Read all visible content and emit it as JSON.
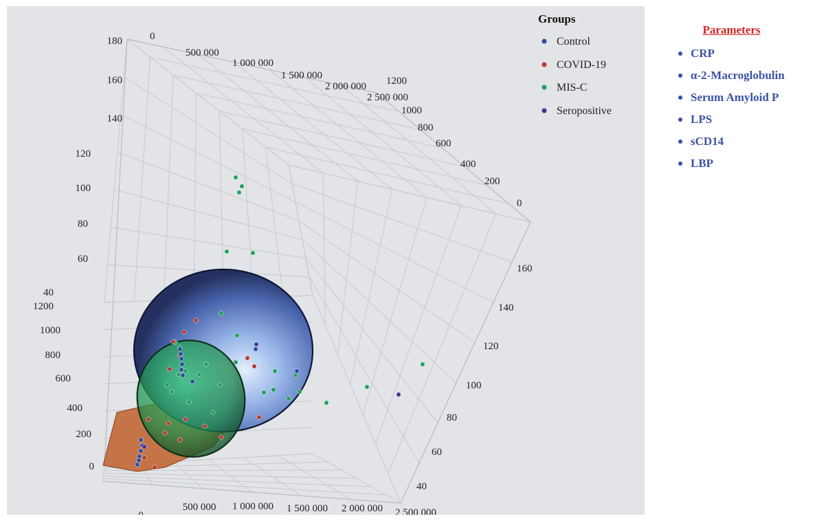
{
  "parameters": {
    "title": "Parameters",
    "items": [
      "CRP",
      "α-2-Macroglobulin",
      "Serum Amyloid P",
      "LPS",
      "sCD14",
      "LBP"
    ]
  },
  "chart_data": {
    "type": "scatter",
    "subtype": "3d-scatter-with-ellipsoids",
    "legend": {
      "title": "Groups",
      "placement": "top-right",
      "entries": [
        {
          "name": "Control",
          "color": "#2b4aa6"
        },
        {
          "name": "COVID-19",
          "color": "#b83a32"
        },
        {
          "name": "MIS-C",
          "color": "#1fa05a"
        },
        {
          "name": "Seropositive",
          "color": "#4b2d8f"
        }
      ]
    },
    "axes": {
      "vertical_left_upper": {
        "ticks": [
          "180",
          "160",
          "140",
          "120",
          "100",
          "80",
          "60",
          "40"
        ],
        "range": [
          40,
          180
        ]
      },
      "vertical_left_lower": {
        "ticks": [
          "1200",
          "1000",
          "800",
          "600",
          "400",
          "200",
          "0"
        ],
        "range": [
          0,
          1200
        ]
      },
      "top_back": {
        "ticks": [
          "0",
          "500 000",
          "1 000 000",
          "1 500 000",
          "2 000 000",
          "2 500 000"
        ],
        "range": [
          0,
          2500000
        ]
      },
      "right_back": {
        "ticks": [
          "1200",
          "1000",
          "800",
          "600",
          "400",
          "200",
          "0"
        ],
        "range": [
          0,
          1200
        ]
      },
      "right_front": {
        "ticks": [
          "160",
          "140",
          "120",
          "100",
          "80",
          "60",
          "40"
        ],
        "range": [
          40,
          160
        ]
      },
      "bottom": {
        "ticks": [
          "0",
          "500 000",
          "1 000 000",
          "1 500 000",
          "2 000 000",
          "2 500 000"
        ],
        "range": [
          0,
          2500000
        ]
      }
    },
    "grid": true,
    "ellipsoids": [
      {
        "group": "Control",
        "color": "#3d5fb8"
      },
      {
        "group": "MIS-C",
        "color": "#2aa35a"
      },
      {
        "group": "COVID-19",
        "color": "#c0602a"
      }
    ],
    "series": [
      {
        "name": "MIS-C",
        "color": "#1fa05a",
        "points": [
          [
            343,
            258
          ],
          [
            352,
            271
          ],
          [
            348,
            280
          ],
          [
            330,
            366
          ],
          [
            368,
            368
          ],
          [
            322,
            456
          ],
          [
            345,
            488
          ],
          [
            343,
            527
          ],
          [
            400,
            540
          ],
          [
            430,
            546
          ],
          [
            436,
            570
          ],
          [
            420,
            580
          ],
          [
            384,
            571
          ],
          [
            398,
            567
          ],
          [
            475,
            586
          ],
          [
            534,
            563
          ],
          [
            615,
            530
          ],
          [
            300,
            530
          ],
          [
            270,
            540
          ],
          [
            255,
            498
          ],
          [
            262,
            505
          ],
          [
            243,
            560
          ],
          [
            260,
            545
          ],
          [
            290,
            545
          ],
          [
            320,
            560
          ],
          [
            250,
            570
          ],
          [
            275,
            585
          ],
          [
            310,
            600
          ]
        ]
      },
      {
        "name": "COVID-19",
        "color": "#b83a32",
        "points": [
          [
            285,
            466
          ],
          [
            268,
            483
          ],
          [
            252,
            497
          ],
          [
            262,
            517
          ],
          [
            247,
            537
          ],
          [
            360,
            521
          ],
          [
            370,
            533
          ],
          [
            377,
            607
          ],
          [
            322,
            636
          ],
          [
            245,
            616
          ],
          [
            270,
            610
          ],
          [
            298,
            620
          ],
          [
            216,
            610
          ],
          [
            240,
            630
          ],
          [
            262,
            640
          ],
          [
            210,
            666
          ],
          [
            225,
            680
          ]
        ]
      },
      {
        "name": "Control",
        "color": "#2b4aa6",
        "points": [
          [
            262,
            508
          ],
          [
            263,
            515
          ],
          [
            264,
            522
          ],
          [
            265,
            530
          ],
          [
            264,
            538
          ],
          [
            266,
            546
          ],
          [
            280,
            555
          ],
          [
            205,
            640
          ],
          [
            207,
            648
          ],
          [
            205,
            656
          ],
          [
            203,
            664
          ],
          [
            202,
            670
          ],
          [
            200,
            676
          ],
          [
            372,
            508
          ],
          [
            432,
            540
          ]
        ]
      },
      {
        "name": "Seropositive",
        "color": "#4b2d8f",
        "points": [
          [
            373,
            501
          ],
          [
            580,
            574
          ],
          [
            210,
            650
          ]
        ]
      }
    ]
  }
}
